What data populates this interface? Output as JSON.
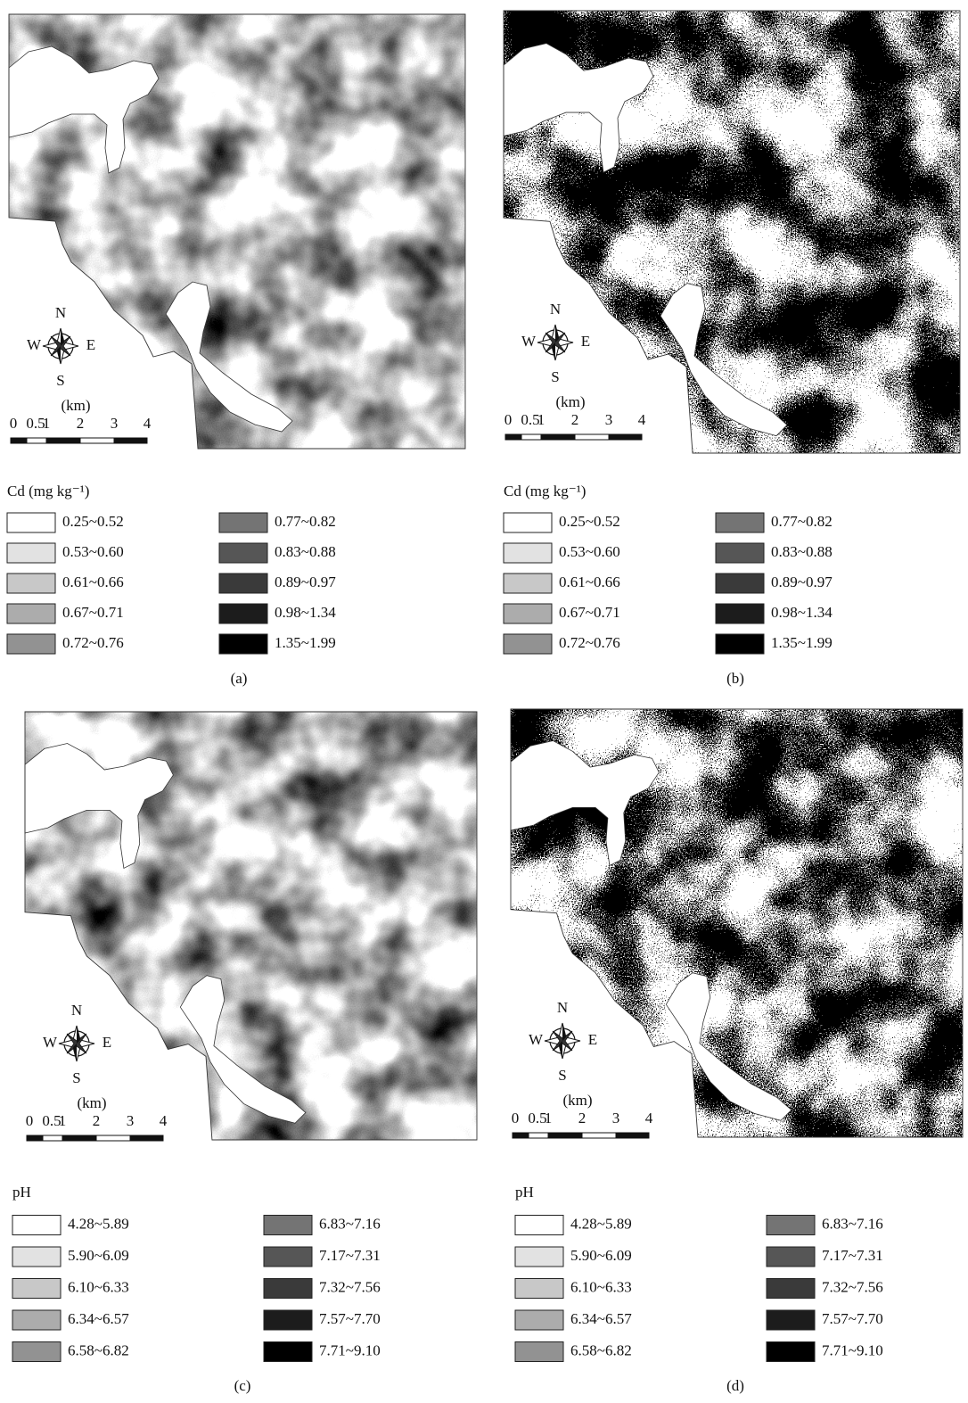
{
  "figure": {
    "panels": [
      {
        "label": "(a)",
        "compass": {
          "north": "N",
          "south": "S",
          "west": "W",
          "east": "E"
        },
        "scale": {
          "unit": "(km)",
          "ticks": [
            0,
            0.5,
            1,
            2,
            3,
            4
          ]
        },
        "legend": {
          "title": "Cd (mg kg⁻¹)",
          "items": [
            {
              "label": "0.25~0.52",
              "color": "#ffffff"
            },
            {
              "label": "0.53~0.60",
              "color": "#e2e2e2"
            },
            {
              "label": "0.61~0.66",
              "color": "#c8c8c8"
            },
            {
              "label": "0.67~0.71",
              "color": "#acacac"
            },
            {
              "label": "0.72~0.76",
              "color": "#929292"
            },
            {
              "label": "0.77~0.82",
              "color": "#747474"
            },
            {
              "label": "0.83~0.88",
              "color": "#565656"
            },
            {
              "label": "0.89~0.97",
              "color": "#3a3a3a"
            },
            {
              "label": "0.98~1.34",
              "color": "#1c1c1c"
            },
            {
              "label": "1.35~1.99",
              "color": "#000000"
            }
          ]
        }
      },
      {
        "label": "(b)",
        "compass": {
          "north": "N",
          "south": "S",
          "west": "W",
          "east": "E"
        },
        "scale": {
          "unit": "(km)",
          "ticks": [
            0,
            0.5,
            1,
            2,
            3,
            4
          ]
        },
        "legend": {
          "title": "Cd (mg kg⁻¹)",
          "items": [
            {
              "label": "0.25~0.52",
              "color": "#ffffff"
            },
            {
              "label": "0.53~0.60",
              "color": "#e2e2e2"
            },
            {
              "label": "0.61~0.66",
              "color": "#c8c8c8"
            },
            {
              "label": "0.67~0.71",
              "color": "#acacac"
            },
            {
              "label": "0.72~0.76",
              "color": "#929292"
            },
            {
              "label": "0.77~0.82",
              "color": "#747474"
            },
            {
              "label": "0.83~0.88",
              "color": "#565656"
            },
            {
              "label": "0.89~0.97",
              "color": "#3a3a3a"
            },
            {
              "label": "0.98~1.34",
              "color": "#1c1c1c"
            },
            {
              "label": "1.35~1.99",
              "color": "#000000"
            }
          ]
        }
      },
      {
        "label": "(c)",
        "compass": {
          "north": "N",
          "south": "S",
          "west": "W",
          "east": "E"
        },
        "scale": {
          "unit": "(km)",
          "ticks": [
            0,
            0.5,
            1,
            2,
            3,
            4
          ]
        },
        "legend": {
          "title": "pH",
          "items": [
            {
              "label": "4.28~5.89",
              "color": "#ffffff"
            },
            {
              "label": "5.90~6.09",
              "color": "#e2e2e2"
            },
            {
              "label": "6.10~6.33",
              "color": "#c8c8c8"
            },
            {
              "label": "6.34~6.57",
              "color": "#acacac"
            },
            {
              "label": "6.58~6.82",
              "color": "#929292"
            },
            {
              "label": "6.83~7.16",
              "color": "#747474"
            },
            {
              "label": "7.17~7.31",
              "color": "#565656"
            },
            {
              "label": "7.32~7.56",
              "color": "#3a3a3a"
            },
            {
              "label": "7.57~7.70",
              "color": "#1c1c1c"
            },
            {
              "label": "7.71~9.10",
              "color": "#000000"
            }
          ]
        }
      },
      {
        "label": "(d)",
        "compass": {
          "north": "N",
          "south": "S",
          "west": "W",
          "east": "E"
        },
        "scale": {
          "unit": "(km)",
          "ticks": [
            0,
            0.5,
            1,
            2,
            3,
            4
          ]
        },
        "legend": {
          "title": "pH",
          "items": [
            {
              "label": "4.28~5.89",
              "color": "#ffffff"
            },
            {
              "label": "5.90~6.09",
              "color": "#e2e2e2"
            },
            {
              "label": "6.10~6.33",
              "color": "#c8c8c8"
            },
            {
              "label": "6.34~6.57",
              "color": "#acacac"
            },
            {
              "label": "6.58~6.82",
              "color": "#929292"
            },
            {
              "label": "6.83~7.16",
              "color": "#747474"
            },
            {
              "label": "7.17~7.31",
              "color": "#565656"
            },
            {
              "label": "7.32~7.56",
              "color": "#3a3a3a"
            },
            {
              "label": "7.57~7.70",
              "color": "#1c1c1c"
            },
            {
              "label": "7.71~9.10",
              "color": "#000000"
            }
          ]
        }
      }
    ]
  }
}
